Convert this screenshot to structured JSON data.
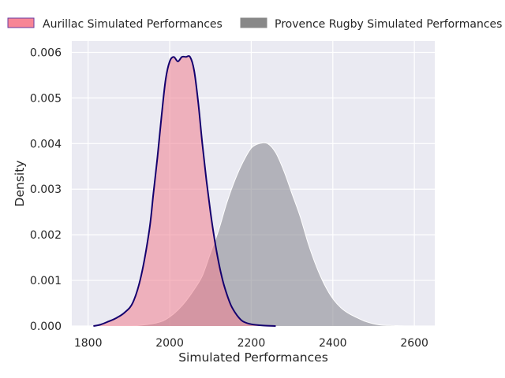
{
  "chart_data": {
    "type": "area",
    "title": "",
    "xlabel": "Simulated Performances",
    "ylabel": "Density",
    "xlim": [
      1760,
      2650
    ],
    "ylim": [
      0,
      0.00625
    ],
    "xticks": [
      1800,
      2000,
      2200,
      2400,
      2600
    ],
    "yticks": [
      0.0,
      0.001,
      0.002,
      0.003,
      0.004,
      0.005,
      0.006
    ],
    "ytick_labels": [
      "0.000",
      "0.001",
      "0.002",
      "0.003",
      "0.004",
      "0.005",
      "0.006"
    ],
    "grid": true,
    "background": "#eaeaf2",
    "legend_position": "top, outside plot area",
    "series": [
      {
        "name": "Aurillac Simulated Performances",
        "fill_color": "#f08090",
        "fill_opacity": 0.55,
        "line_color": "#14006e",
        "legend_fill": "#f78595",
        "legend_edge": "#6a3aa0",
        "x": [
          1813,
          1830,
          1850,
          1870,
          1890,
          1910,
          1930,
          1950,
          1960,
          1970,
          1980,
          1990,
          2000,
          2010,
          2020,
          2030,
          2040,
          2050,
          2060,
          2070,
          2080,
          2090,
          2100,
          2110,
          2120,
          2130,
          2140,
          2150,
          2160,
          2170,
          2180,
          2200,
          2230,
          2260
        ],
        "y": [
          0.0,
          3e-05,
          0.0001,
          0.00018,
          0.0003,
          0.00052,
          0.0011,
          0.0021,
          0.0029,
          0.0037,
          0.0046,
          0.0054,
          0.0058,
          0.0059,
          0.0058,
          0.0059,
          0.0059,
          0.0059,
          0.0056,
          0.0049,
          0.004,
          0.0032,
          0.0025,
          0.0019,
          0.0014,
          0.001,
          0.0007,
          0.00046,
          0.0003,
          0.00018,
          0.0001,
          4e-05,
          1e-05,
          0.0
        ]
      },
      {
        "name": "Provence Rugby Simulated Performances",
        "fill_color": "#8c8c94",
        "fill_opacity": 0.6,
        "line_color": "#ffffff",
        "legend_fill": "#888888",
        "legend_edge": "#888888",
        "x": [
          1790,
          1900,
          1950,
          1980,
          2000,
          2020,
          2040,
          2060,
          2080,
          2100,
          2120,
          2140,
          2160,
          2180,
          2200,
          2220,
          2240,
          2260,
          2280,
          2300,
          2320,
          2340,
          2360,
          2380,
          2400,
          2420,
          2440,
          2460,
          2480,
          2500,
          2520,
          2550,
          2580,
          2610
        ],
        "y": [
          0.0,
          0.0,
          4e-05,
          0.0001,
          0.0002,
          0.00035,
          0.00055,
          0.0008,
          0.0011,
          0.0016,
          0.0021,
          0.0027,
          0.0032,
          0.0036,
          0.0039,
          0.004,
          0.004,
          0.0038,
          0.0034,
          0.0029,
          0.0024,
          0.0018,
          0.0013,
          0.0009,
          0.0006,
          0.0004,
          0.00027,
          0.00018,
          0.0001,
          5e-05,
          2e-05,
          1e-05,
          0.0,
          0.0
        ]
      }
    ]
  }
}
